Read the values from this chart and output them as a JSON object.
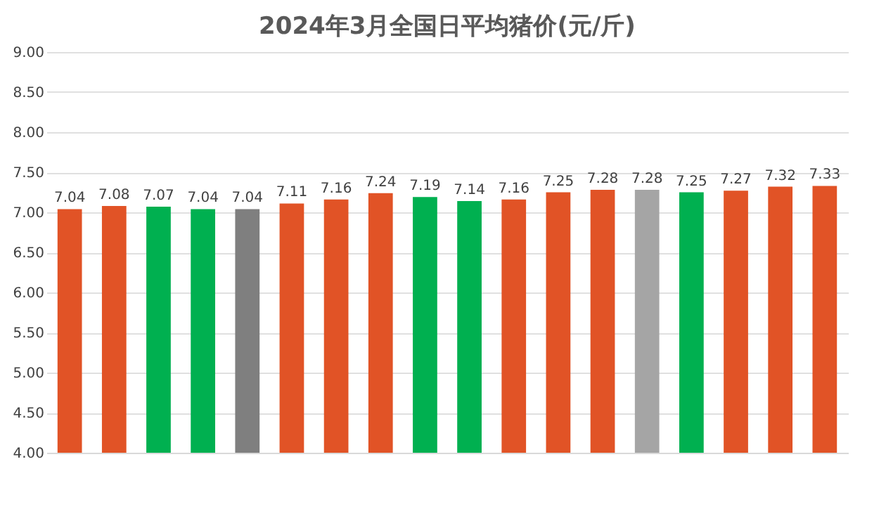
{
  "chart_data": {
    "type": "bar",
    "title": "2024年3月全国日平均猪价(元/斤)",
    "categories": [
      null,
      null,
      null,
      null,
      null,
      null,
      null,
      null,
      null,
      null,
      null,
      null,
      null,
      null,
      null,
      null,
      null,
      null
    ],
    "values": [
      7.04,
      7.08,
      7.07,
      7.04,
      7.04,
      7.11,
      7.16,
      7.24,
      7.19,
      7.14,
      7.16,
      7.25,
      7.28,
      7.28,
      7.25,
      7.27,
      7.32,
      7.33
    ],
    "colors": [
      "#e15326",
      "#e15326",
      "#00b050",
      "#00b050",
      "#7f7f7f",
      "#e15326",
      "#e15326",
      "#e15326",
      "#00b050",
      "#00b050",
      "#e15326",
      "#e15326",
      "#e15326",
      "#a5a5a5",
      "#00b050",
      "#e15326",
      "#e15326",
      "#e15326"
    ],
    "ylim": [
      4.0,
      9.0
    ],
    "yticks": [
      {
        "value": 4.0,
        "label": "4.00"
      },
      {
        "value": 4.5,
        "label": "4.50"
      },
      {
        "value": 5.0,
        "label": "5.00"
      },
      {
        "value": 5.5,
        "label": "5.50"
      },
      {
        "value": 6.0,
        "label": "6.00"
      },
      {
        "value": 6.5,
        "label": "6.50"
      },
      {
        "value": 7.0,
        "label": "7.00"
      },
      {
        "value": 7.5,
        "label": "7.50"
      },
      {
        "value": 8.0,
        "label": "8.00"
      },
      {
        "value": 8.5,
        "label": "8.50"
      },
      {
        "value": 9.0,
        "label": "9.00"
      }
    ],
    "grid": "y",
    "data_labels": true,
    "legend": false
  }
}
